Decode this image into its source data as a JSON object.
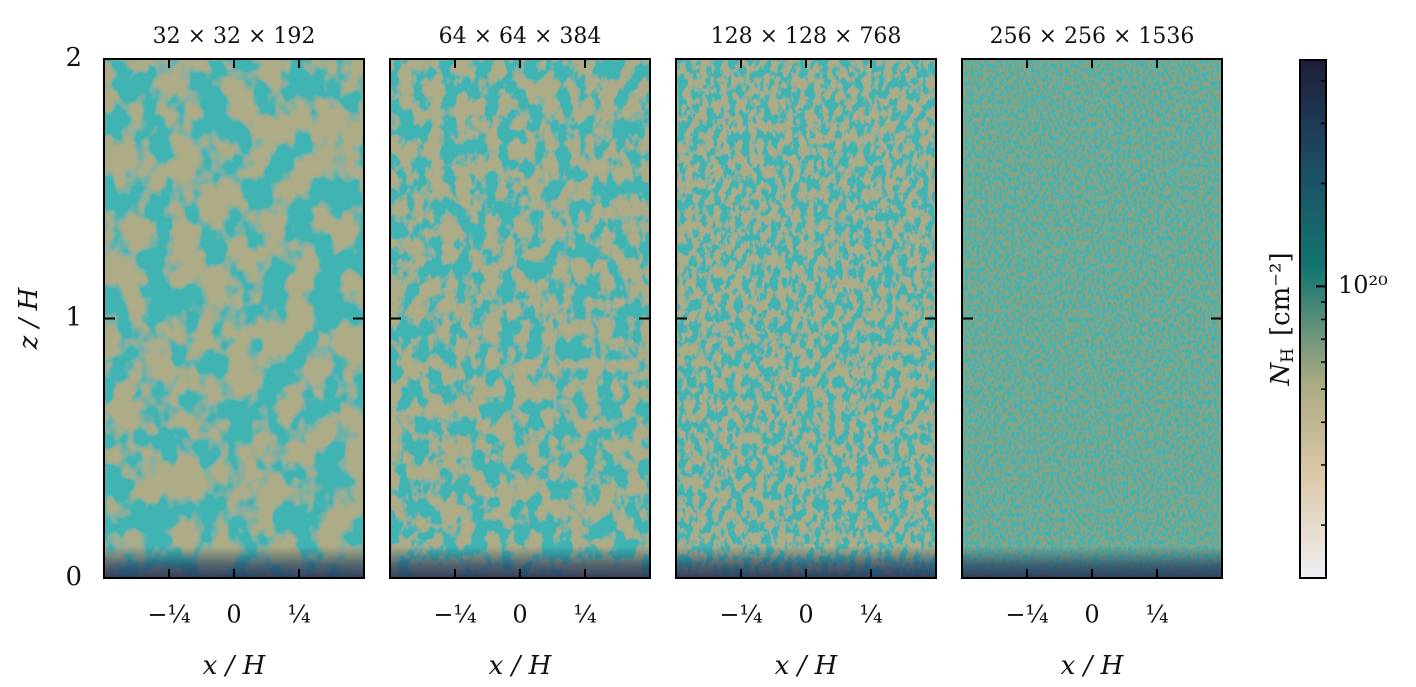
{
  "chart_data": [
    {
      "type": "heatmap",
      "title": "32 × 32 × 192",
      "xlabel": "x / H",
      "ylabel": "z / H",
      "xlim": [
        -0.5,
        0.5
      ],
      "ylim": [
        0,
        2
      ],
      "xticks": [
        {
          "value": -0.25,
          "label": "−¼"
        },
        0,
        {
          "value": 0.25,
          "label": "¼"
        }
      ],
      "yticks": [
        0,
        1,
        2
      ]
    },
    {
      "type": "heatmap",
      "title": "64 × 64 × 384",
      "xlabel": "x / H",
      "xlim": [
        -0.5,
        0.5
      ],
      "ylim": [
        0,
        2
      ],
      "xticks": [
        {
          "value": -0.25,
          "label": "−¼"
        },
        0,
        {
          "value": 0.25,
          "label": "¼"
        }
      ],
      "yticks": [
        0,
        1,
        2
      ]
    },
    {
      "type": "heatmap",
      "title": "128 × 128 × 768",
      "xlabel": "x / H",
      "xlim": [
        -0.5,
        0.5
      ],
      "ylim": [
        0,
        2
      ],
      "xticks": [
        {
          "value": -0.25,
          "label": "−¼"
        },
        0,
        {
          "value": 0.25,
          "label": "¼"
        }
      ],
      "yticks": [
        0,
        1,
        2
      ]
    },
    {
      "type": "heatmap",
      "title": "256 × 256 × 1536",
      "xlabel": "x / H",
      "xlim": [
        -0.5,
        0.5
      ],
      "ylim": [
        0,
        2
      ],
      "xticks": [
        {
          "value": -0.25,
          "label": "−¼"
        },
        0,
        {
          "value": 0.25,
          "label": "¼"
        }
      ],
      "yticks": [
        0,
        1,
        2
      ]
    }
  ],
  "colorbar": {
    "label": "N",
    "label_sub": "H",
    "unit": "[cm⁻²]",
    "log": true,
    "lim": [
      1.4e+19,
      4.6e+20
    ],
    "ticks": [
      {
        "value": 1e+20,
        "label": "10²⁰"
      }
    ],
    "minor_ticks": [
      2e+19,
      3e+19,
      4e+19,
      5e+19,
      6e+19,
      7e+19,
      8e+19,
      9e+19,
      2e+20,
      3e+20,
      4e+20
    ]
  }
}
